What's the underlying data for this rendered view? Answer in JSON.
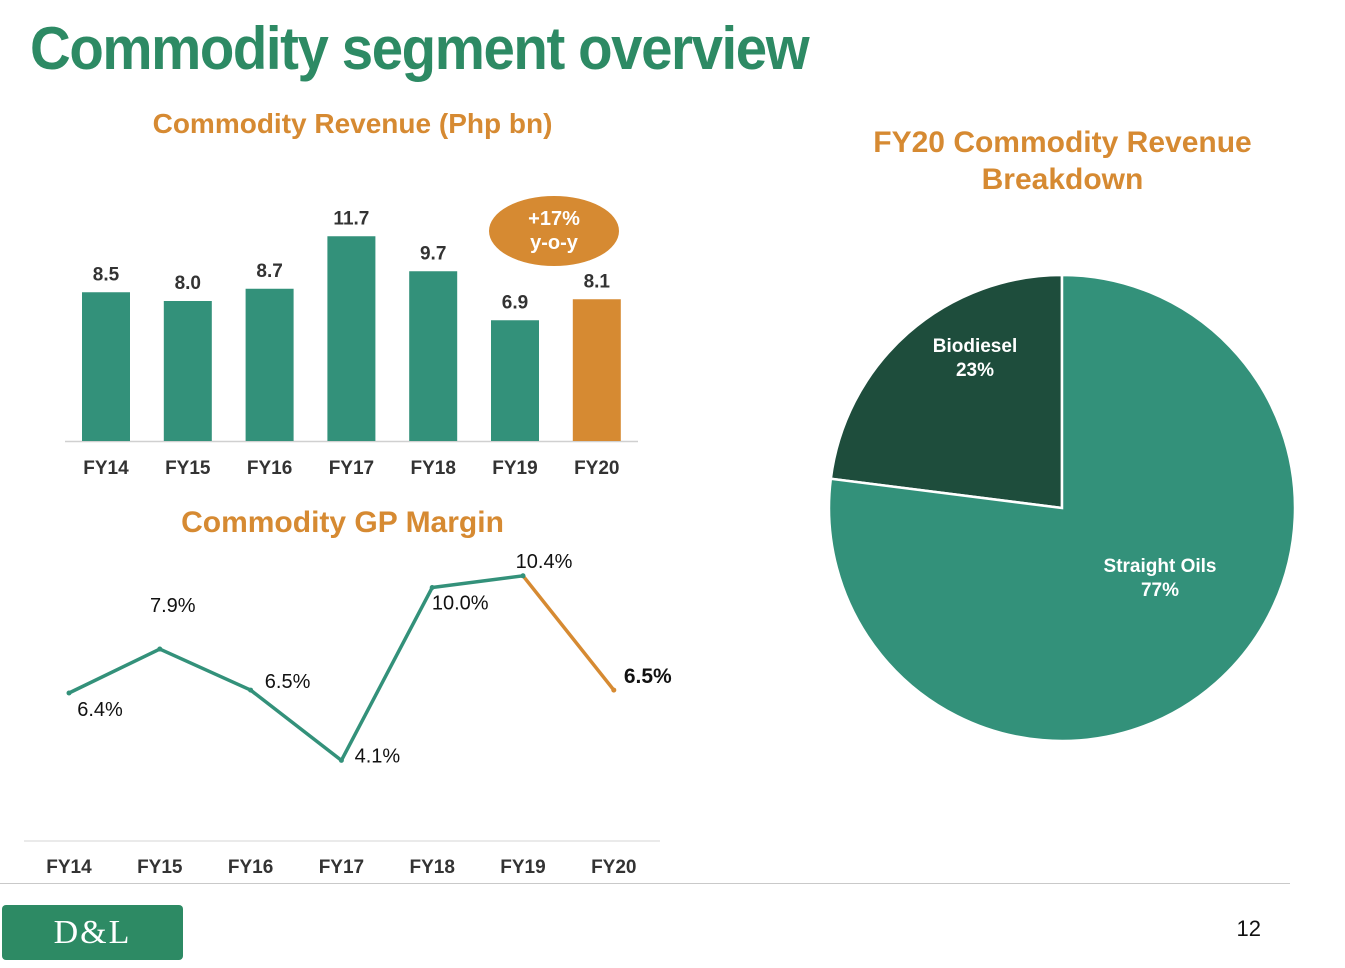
{
  "page": {
    "title": "Commodity segment overview",
    "page_number": "12",
    "logo_text": "D&L",
    "badge_line1": "+17%",
    "badge_line2": "y-o-y"
  },
  "colors": {
    "green": "#2d8a64",
    "bar_green": "#33917a",
    "dark_green": "#1e4d3c",
    "orange": "#d68a32"
  },
  "chart_data": [
    {
      "type": "bar",
      "title": "Commodity Revenue (Php bn)",
      "categories": [
        "FY14",
        "FY15",
        "FY16",
        "FY17",
        "FY18",
        "FY19",
        "FY20"
      ],
      "values": [
        8.5,
        8.0,
        8.7,
        11.7,
        9.7,
        6.9,
        8.1
      ],
      "value_labels": [
        "8.5",
        "8.0",
        "8.7",
        "11.7",
        "9.7",
        "6.9",
        "8.1"
      ],
      "highlight": "FY20",
      "grid": false
    },
    {
      "type": "line",
      "title": "Commodity GP Margin",
      "categories": [
        "FY14",
        "FY15",
        "FY16",
        "FY17",
        "FY18",
        "FY19",
        "FY20"
      ],
      "values": [
        6.4,
        7.9,
        6.5,
        4.1,
        10.0,
        10.4,
        6.5
      ],
      "value_labels": [
        "6.4%",
        "7.9%",
        "6.5%",
        "4.1%",
        "10.0%",
        "10.4%",
        "6.5%"
      ],
      "highlight": "FY20",
      "grid": false
    },
    {
      "type": "pie",
      "title": "FY20 Commodity Revenue Breakdown",
      "slices": [
        {
          "name": "Biodiesel",
          "value": 23,
          "label": "23%"
        },
        {
          "name": "Straight Oils",
          "value": 77,
          "label": "77%"
        }
      ]
    }
  ]
}
